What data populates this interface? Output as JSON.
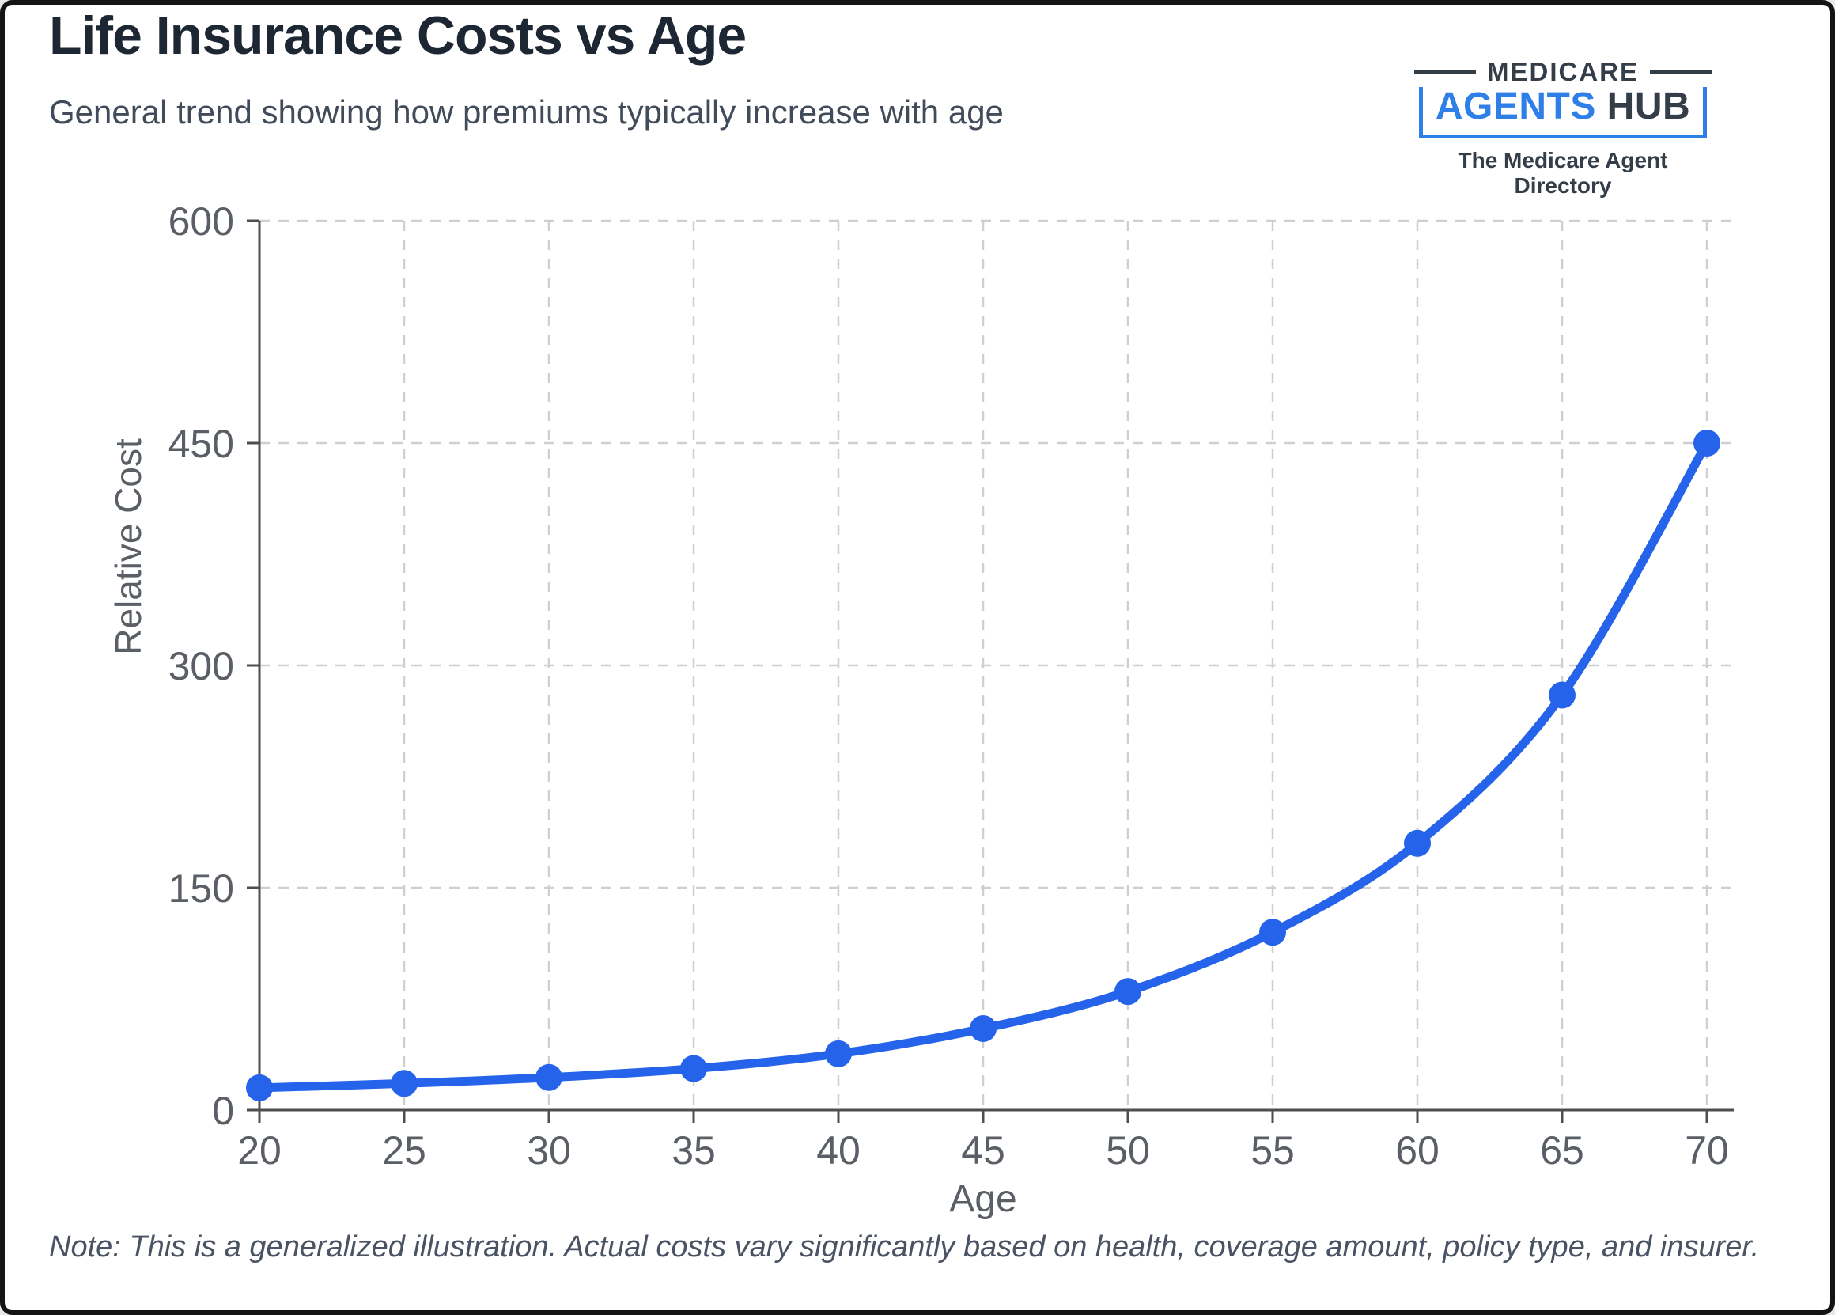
{
  "page": {
    "title": "Life Insurance Costs vs Age",
    "subtitle": "General trend showing how premiums typically increase with age",
    "note": "Note: This is a generalized illustration. Actual costs vary significantly based on health, coverage amount, policy type, and insurer."
  },
  "logo": {
    "top_word": "MEDICARE",
    "name_primary": "AGENTS",
    "name_secondary": "HUB",
    "tagline": "The Medicare Agent Directory",
    "blue": "#2e80e8",
    "dark": "#343e49"
  },
  "chart_data": {
    "type": "line",
    "title": "Life Insurance Costs vs Age",
    "xlabel": "Age",
    "ylabel": "Relative Cost",
    "x": [
      20,
      25,
      30,
      35,
      40,
      45,
      50,
      55,
      60,
      65,
      70
    ],
    "series": [
      {
        "name": "Relative Cost",
        "values": [
          15,
          18,
          22,
          28,
          38,
          55,
          80,
          120,
          180,
          280,
          450
        ]
      }
    ],
    "xlim": [
      20,
      70
    ],
    "ylim": [
      0,
      600
    ],
    "xticks": [
      20,
      25,
      30,
      35,
      40,
      45,
      50,
      55,
      60,
      65,
      70
    ],
    "yticks": [
      0,
      150,
      300,
      450,
      600
    ],
    "grid": true,
    "grid_style": "dashed",
    "legend": "none",
    "line_color": "#2563eb",
    "point_color": "#2563eb",
    "axis_color": "#4e4e4e",
    "grid_color": "#cfcfcf",
    "tick_label_color": "#5a5f66"
  }
}
